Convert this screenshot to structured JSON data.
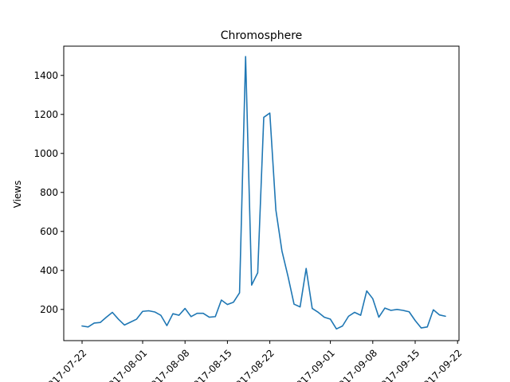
{
  "chart_data": {
    "type": "line",
    "title": "Chromosphere",
    "xlabel": "",
    "ylabel": "Views",
    "x_start": "2017-07-22",
    "x_ticks": [
      "2017-07-22",
      "2017-08-01",
      "2017-08-08",
      "2017-08-15",
      "2017-08-22",
      "2017-09-01",
      "2017-09-08",
      "2017-09-15",
      "2017-09-22"
    ],
    "y_ticks": [
      200,
      400,
      600,
      800,
      1000,
      1200,
      1400
    ],
    "ylim": [
      40,
      1550
    ],
    "grid": false,
    "legend": "none",
    "line_color": "#1f77b4",
    "series": [
      {
        "values": [
          115,
          110,
          130,
          133,
          160,
          185,
          150,
          120,
          135,
          150,
          190,
          193,
          187,
          170,
          117,
          178,
          170,
          205,
          163,
          180,
          180,
          160,
          163,
          248,
          225,
          237,
          285,
          1497,
          325,
          388,
          1185,
          1207,
          710,
          500,
          370,
          227,
          213,
          410,
          205,
          185,
          160,
          150,
          100,
          115,
          165,
          185,
          170,
          295,
          255,
          160,
          207,
          195,
          200,
          195,
          188,
          143,
          105,
          110,
          198,
          172,
          165
        ]
      }
    ]
  }
}
